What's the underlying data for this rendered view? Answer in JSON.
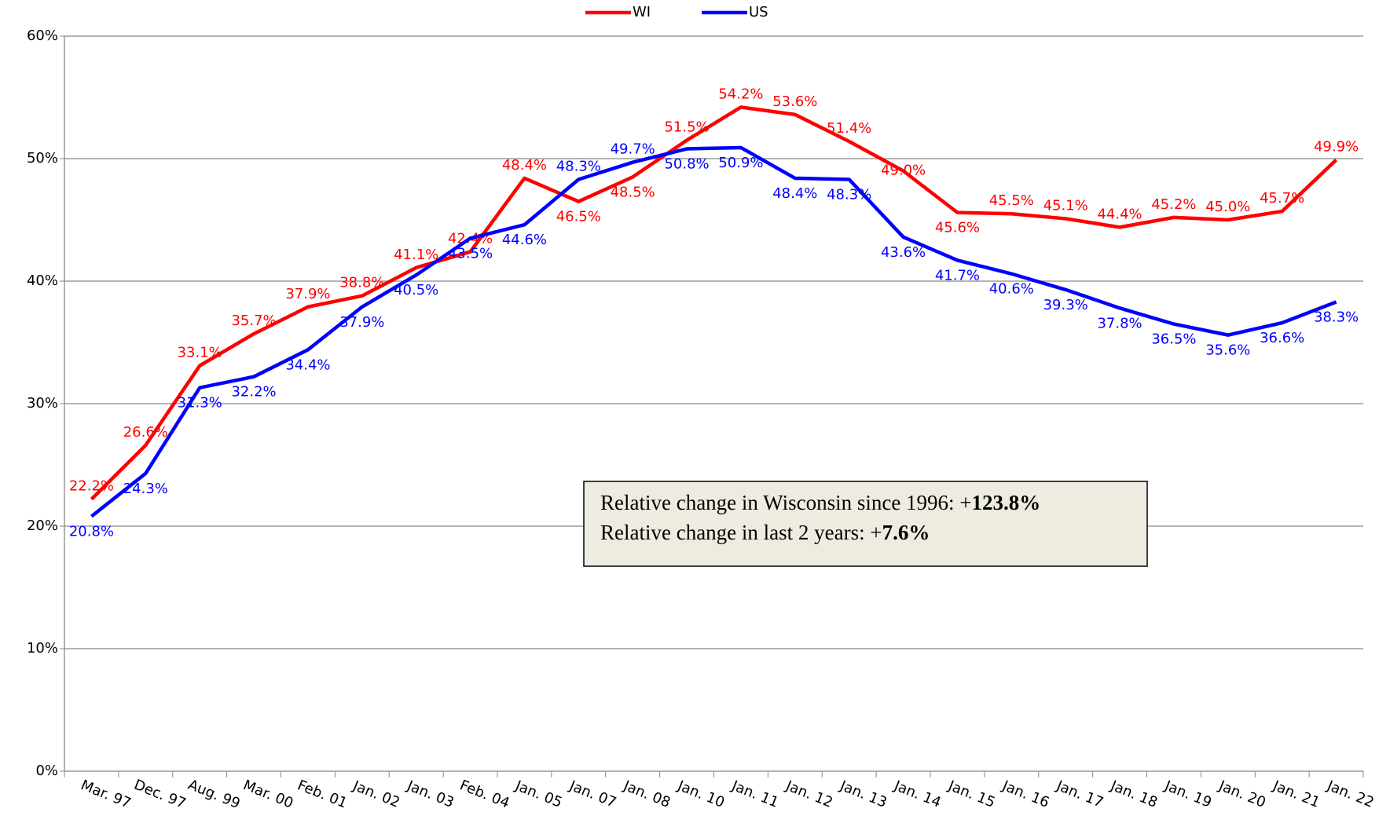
{
  "chart_data": {
    "type": "line",
    "categories": [
      "Mar. 97",
      "Dec. 97",
      "Aug. 99",
      "Mar. 00",
      "Feb. 01",
      "Jan. 02",
      "Jan. 03",
      "Feb. 04",
      "Jan. 05",
      "Jan. 07",
      "Jan. 08",
      "Jan. 10",
      "Jan. 11",
      "Jan. 12",
      "Jan. 13",
      "Jan. 14",
      "Jan. 15",
      "Jan. 16",
      "Jan. 17",
      "Jan. 18",
      "Jan. 19",
      "Jan. 20",
      "Jan. 21",
      "Jan. 22"
    ],
    "series": [
      {
        "name": "WI",
        "color": "#ff0000",
        "values": [
          22.2,
          26.6,
          33.1,
          35.7,
          37.9,
          38.8,
          41.1,
          42.4,
          48.4,
          46.5,
          48.5,
          51.5,
          54.2,
          53.6,
          51.4,
          49.0,
          45.6,
          45.5,
          45.1,
          44.4,
          45.2,
          45.0,
          45.7,
          49.9
        ],
        "value_labels": [
          "22.2%",
          "26.6%",
          "33.1%",
          "35.7%",
          "37.9%",
          "38.8%",
          "41.1%",
          "42.4%",
          "48.4%",
          "46.5%",
          "48.5%",
          "51.5%",
          "54.2%",
          "53.6%",
          "51.4%",
          "49.0%",
          "45.6%",
          "45.5%",
          "45.1%",
          "44.4%",
          "45.2%",
          "45.0%",
          "45.7%",
          "49.9%"
        ]
      },
      {
        "name": "US",
        "color": "#0000ff",
        "values": [
          20.8,
          24.3,
          31.3,
          32.2,
          34.4,
          37.9,
          40.5,
          43.5,
          44.6,
          48.3,
          49.7,
          50.8,
          50.9,
          48.4,
          48.3,
          43.6,
          41.7,
          40.6,
          39.3,
          37.8,
          36.5,
          35.6,
          36.6,
          38.3
        ],
        "value_labels": [
          "20.8%",
          "24.3%",
          "31.3%",
          "32.2%",
          "34.4%",
          "37.9%",
          "40.5%",
          "43.5%",
          "44.6%",
          "48.3%",
          "49.7%",
          "50.8%",
          "50.9%",
          "48.4%",
          "48.3%",
          "43.6%",
          "41.7%",
          "40.6%",
          "39.3%",
          "37.8%",
          "36.5%",
          "35.6%",
          "36.6%",
          "38.3%"
        ]
      }
    ],
    "ylim": [
      0,
      60
    ],
    "yticks": [
      {
        "value": 0,
        "label": "0%"
      },
      {
        "value": 10,
        "label": "10%"
      },
      {
        "value": 20,
        "label": "20%"
      },
      {
        "value": 30,
        "label": "30%"
      },
      {
        "value": 40,
        "label": "40%"
      },
      {
        "value": 50,
        "label": "50%"
      },
      {
        "value": 60,
        "label": "60%"
      }
    ],
    "grid": true,
    "legend": "top",
    "annotation": [
      {
        "text": "Relative change in Wisconsin since 1996: +",
        "bold": "123.8%"
      },
      {
        "text": "Relative change in last 2 years: +",
        "bold": "7.6%"
      }
    ]
  }
}
